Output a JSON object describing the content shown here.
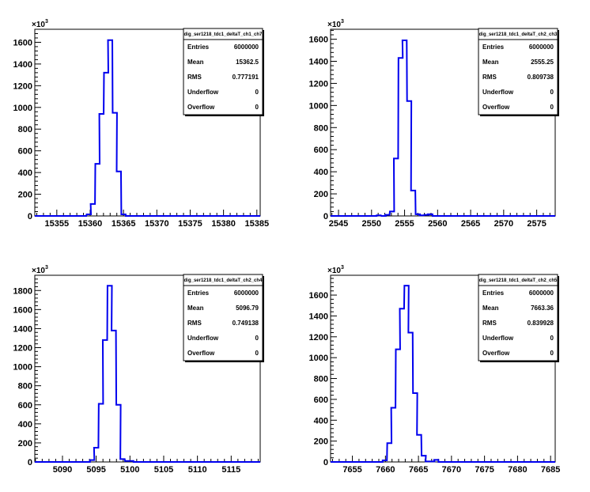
{
  "chart_data": [
    {
      "type": "histogram",
      "stats": {
        "title": "dig_ser1218_tdc1_deltaT_ch1_ch7",
        "rows": [
          {
            "label": "Entries",
            "value": "6000000"
          },
          {
            "label": "Mean",
            "value": "15362.5"
          },
          {
            "label": "RMS",
            "value": "0.777191"
          },
          {
            "label": "Underflow",
            "value": "0"
          },
          {
            "label": "Overflow",
            "value": "0"
          }
        ]
      },
      "y_multiplier": "×10",
      "y_multiplier_exp": "3",
      "xlim": [
        15351.7,
        15385.5
      ],
      "ylim": [
        0,
        1720
      ],
      "x_ticks": [
        "15355",
        "15360",
        "15365",
        "15370",
        "15375",
        "15380",
        "15385"
      ],
      "y_ticks": [
        "0",
        "200",
        "400",
        "600",
        "800",
        "1000",
        "1200",
        "1400",
        "1600"
      ],
      "bin_width": 0.65,
      "x": [
        15359.1,
        15359.8,
        15360.4,
        15361.1,
        15361.7,
        15362.4,
        15363.0,
        15363.7,
        15364.3,
        15365.0
      ],
      "values": [
        0,
        15,
        110,
        480,
        940,
        1320,
        1620,
        950,
        410,
        15
      ],
      "color": "#0000ee"
    },
    {
      "type": "histogram",
      "stats": {
        "title": "dig_ser1218_tdc1_deltaT_ch2_ch3",
        "rows": [
          {
            "label": "Entries",
            "value": "6000000"
          },
          {
            "label": "Mean",
            "value": "2555.25"
          },
          {
            "label": "RMS",
            "value": "0.809738"
          },
          {
            "label": "Underflow",
            "value": "0"
          },
          {
            "label": "Overflow",
            "value": "0"
          }
        ]
      },
      "y_multiplier": "×10",
      "y_multiplier_exp": "3",
      "xlim": [
        2543.8,
        2577.8
      ],
      "ylim": [
        0,
        1690
      ],
      "x_ticks": [
        "2545",
        "2550",
        "2555",
        "2560",
        "2565",
        "2570",
        "2575"
      ],
      "y_ticks": [
        "0",
        "200",
        "400",
        "600",
        "800",
        "1000",
        "1200",
        "1400",
        "1600"
      ],
      "bin_width": 0.65,
      "x": [
        2551.1,
        2551.8,
        2552.4,
        2553.1,
        2553.7,
        2554.4,
        2555.0,
        2555.7,
        2556.3,
        2557.0,
        2557.6,
        2558.3,
        2558.9
      ],
      "values": [
        5,
        0,
        10,
        40,
        520,
        1430,
        1590,
        1040,
        230,
        15,
        5,
        10,
        15
      ],
      "color": "#0000ee"
    },
    {
      "type": "histogram",
      "stats": {
        "title": "dig_ser1218_tdc1_deltaT_ch2_ch4",
        "rows": [
          {
            "label": "Entries",
            "value": "6000000"
          },
          {
            "label": "Mean",
            "value": "5096.79"
          },
          {
            "label": "RMS",
            "value": "0.749138"
          },
          {
            "label": "Underflow",
            "value": "0"
          },
          {
            "label": "Overflow",
            "value": "0"
          }
        ]
      },
      "y_multiplier": "×10",
      "y_multiplier_exp": "3",
      "xlim": [
        5085.9,
        5119.3
      ],
      "ylim": [
        0,
        1960
      ],
      "x_ticks": [
        "5090",
        "5095",
        "5100",
        "5105",
        "5110",
        "5115"
      ],
      "y_ticks": [
        "0",
        "200",
        "400",
        "600",
        "800",
        "1000",
        "1200",
        "1400",
        "1600",
        "1800"
      ],
      "bin_width": 0.65,
      "x": [
        5094.4,
        5095.0,
        5095.7,
        5096.3,
        5097.0,
        5097.6,
        5098.3,
        5098.9,
        5099.6,
        5100.2
      ],
      "values": [
        20,
        150,
        610,
        1280,
        1850,
        1380,
        600,
        30,
        10,
        10
      ],
      "color": "#0000ee"
    },
    {
      "type": "histogram",
      "stats": {
        "title": "dig_ser1218_tdc1_deltaT_ch2_ch5",
        "rows": [
          {
            "label": "Entries",
            "value": "6000000"
          },
          {
            "label": "Mean",
            "value": "7663.36"
          },
          {
            "label": "RMS",
            "value": "0.839928"
          },
          {
            "label": "Underflow",
            "value": "0"
          },
          {
            "label": "Overflow",
            "value": "0"
          }
        ]
      },
      "y_multiplier": "×10",
      "y_multiplier_exp": "3",
      "xlim": [
        7651.7,
        7685.7
      ],
      "ylim": [
        0,
        1790
      ],
      "x_ticks": [
        "7655",
        "7660",
        "7665",
        "7670",
        "7675",
        "7680",
        "7685"
      ],
      "y_ticks": [
        "0",
        "200",
        "400",
        "600",
        "800",
        "1000",
        "1200",
        "1400",
        "1600"
      ],
      "bin_width": 0.65,
      "x": [
        7659.9,
        7660.6,
        7661.2,
        7661.9,
        7662.5,
        7663.2,
        7663.8,
        7664.5,
        7665.1,
        7665.8,
        7666.4,
        7667.1,
        7667.7
      ],
      "values": [
        15,
        180,
        520,
        1080,
        1470,
        1690,
        1240,
        660,
        260,
        60,
        5,
        5,
        20
      ],
      "color": "#0000ee"
    }
  ]
}
